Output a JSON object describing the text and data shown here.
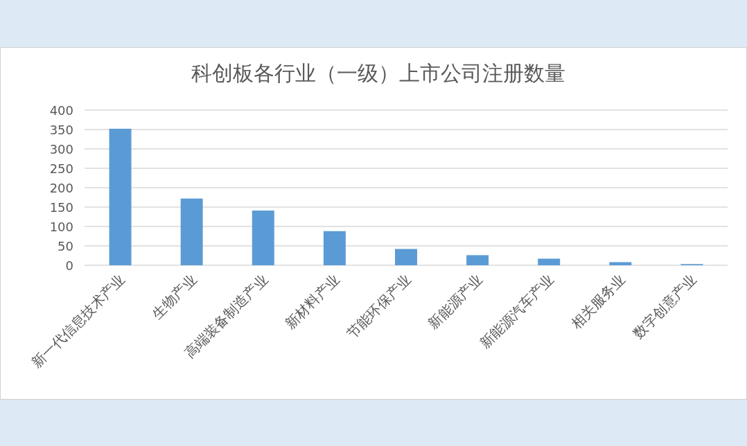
{
  "chart_data": {
    "type": "bar",
    "title": "科创板各行业（一级）上市公司注册数量",
    "categories": [
      "新一代信息技术产业",
      "生物产业",
      "高端装备制造产业",
      "新材料产业",
      "节能环保产业",
      "新能源产业",
      "新能源汽车产业",
      "相关服务业",
      "数字创意产业"
    ],
    "values": [
      352,
      172,
      141,
      88,
      42,
      26,
      17,
      8,
      3
    ],
    "color": "#5b9bd5",
    "ylim": [
      0,
      400
    ],
    "yticks": [
      0,
      50,
      100,
      150,
      200,
      250,
      300,
      350,
      400
    ],
    "grid": "y"
  }
}
